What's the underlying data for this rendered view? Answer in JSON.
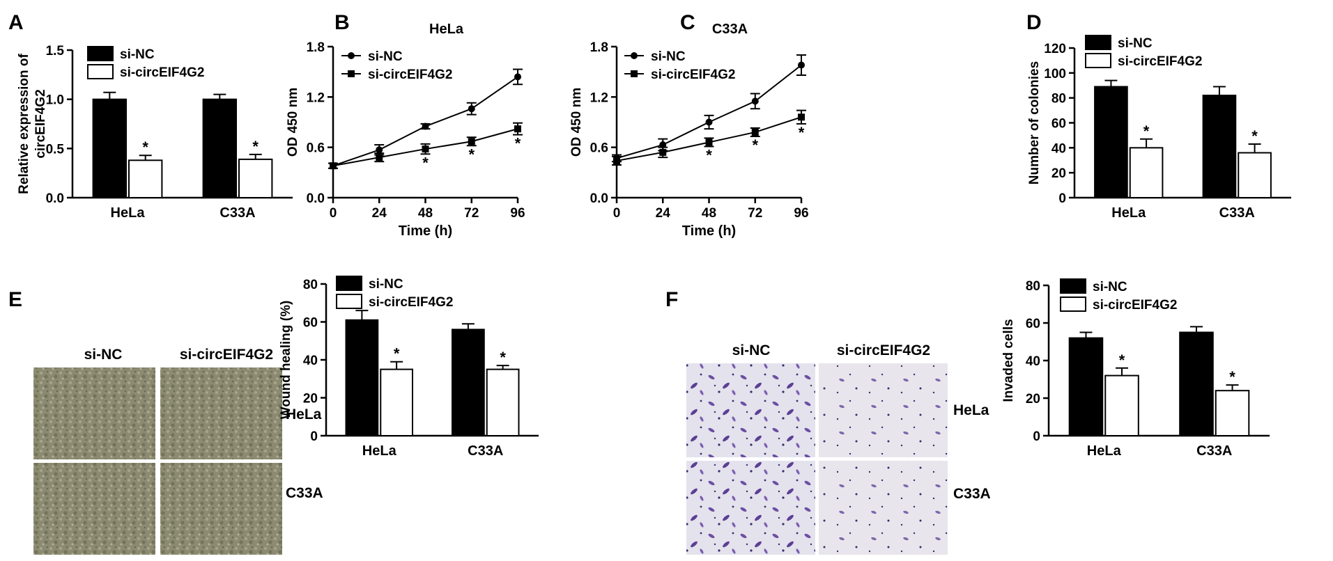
{
  "panels": {
    "A": "A",
    "B": "B",
    "C": "C",
    "D": "D",
    "E": "E",
    "F": "F"
  },
  "colors": {
    "si_nc": "#000000",
    "si_circ": "#ffffff",
    "axis": "#000000"
  },
  "legend": {
    "si_nc": "si-NC",
    "si_circ": "si-circEIF4G2"
  },
  "significance_marker": "*",
  "micrographs": {
    "E": {
      "col_labels": [
        "si-NC",
        "si-circEIF4G2"
      ],
      "row_labels": [
        "HeLa",
        "C33A"
      ],
      "stain": "phase-contrast wound healing"
    },
    "F": {
      "col_labels": [
        "si-NC",
        "si-circEIF4G2"
      ],
      "row_labels": [
        "HeLa",
        "C33A"
      ],
      "stain": "crystal violet invasion"
    }
  },
  "chart_data": [
    {
      "panel": "A",
      "type": "bar",
      "title": "",
      "categories": [
        "HeLa",
        "C33A"
      ],
      "ylabel": "Relative expression of circEIF4G2",
      "ylim": [
        0,
        1.5
      ],
      "yticks": [
        "0.0",
        "0.5",
        "1.0",
        "1.5"
      ],
      "ytick_values": [
        0,
        0.5,
        1.0,
        1.5
      ],
      "series": [
        {
          "name": "si-NC",
          "values": [
            1.0,
            1.0
          ],
          "errors": [
            0.07,
            0.05
          ]
        },
        {
          "name": "si-circEIF4G2",
          "values": [
            0.38,
            0.39
          ],
          "errors": [
            0.05,
            0.05
          ]
        }
      ],
      "sig": [
        [
          false,
          true
        ],
        [
          false,
          true
        ]
      ],
      "legend_position": "top-left"
    },
    {
      "panel": "B",
      "type": "line",
      "title": "HeLa",
      "x": [
        0,
        24,
        48,
        72,
        96
      ],
      "xlabel": "Time (h)",
      "ylabel": "OD 450 nm",
      "xlim": [
        0,
        96
      ],
      "ylim": [
        0,
        1.8
      ],
      "xticks": [
        "0",
        "24",
        "48",
        "72",
        "96"
      ],
      "xtick_values": [
        0,
        24,
        48,
        72,
        96
      ],
      "yticks": [
        "0.0",
        "0.6",
        "1.2",
        "1.8"
      ],
      "ytick_values": [
        0,
        0.6,
        1.2,
        1.8
      ],
      "series": [
        {
          "name": "si-NC",
          "values": [
            0.38,
            0.57,
            0.85,
            1.06,
            1.44
          ],
          "errors": [
            0.03,
            0.06,
            0.03,
            0.07,
            0.09
          ]
        },
        {
          "name": "si-circEIF4G2",
          "values": [
            0.38,
            0.48,
            0.58,
            0.67,
            0.82
          ],
          "errors": [
            0.03,
            0.05,
            0.06,
            0.05,
            0.07
          ]
        }
      ],
      "sig_points": [
        false,
        false,
        true,
        true,
        true
      ],
      "legend_position": "top-left"
    },
    {
      "panel": "C",
      "type": "line",
      "title": "C33A",
      "x": [
        0,
        24,
        48,
        72,
        96
      ],
      "xlabel": "Time (h)",
      "ylabel": "OD 450 nm",
      "xlim": [
        0,
        96
      ],
      "ylim": [
        0,
        1.8
      ],
      "xticks": [
        "0",
        "24",
        "48",
        "72",
        "96"
      ],
      "xtick_values": [
        0,
        24,
        48,
        72,
        96
      ],
      "yticks": [
        "0.0",
        "0.6",
        "1.2",
        "1.8"
      ],
      "ytick_values": [
        0,
        0.6,
        1.2,
        1.8
      ],
      "series": [
        {
          "name": "si-NC",
          "values": [
            0.47,
            0.63,
            0.9,
            1.15,
            1.58
          ],
          "errors": [
            0.04,
            0.07,
            0.08,
            0.09,
            0.12
          ]
        },
        {
          "name": "si-circEIF4G2",
          "values": [
            0.44,
            0.54,
            0.66,
            0.78,
            0.96
          ],
          "errors": [
            0.05,
            0.06,
            0.05,
            0.05,
            0.08
          ]
        }
      ],
      "sig_points": [
        false,
        false,
        true,
        true,
        true
      ],
      "legend_position": "top-left"
    },
    {
      "panel": "D",
      "type": "bar",
      "title": "",
      "categories": [
        "HeLa",
        "C33A"
      ],
      "ylabel": "Number of colonies",
      "ylim": [
        0,
        120
      ],
      "yticks": [
        "0",
        "20",
        "40",
        "60",
        "80",
        "100",
        "120"
      ],
      "ytick_values": [
        0,
        20,
        40,
        60,
        80,
        100,
        120
      ],
      "series": [
        {
          "name": "si-NC",
          "values": [
            89,
            82
          ],
          "errors": [
            5,
            7
          ]
        },
        {
          "name": "si-circEIF4G2",
          "values": [
            40,
            36
          ],
          "errors": [
            7,
            7
          ]
        }
      ],
      "sig": [
        [
          false,
          true
        ],
        [
          false,
          true
        ]
      ],
      "legend_position": "top-left"
    },
    {
      "panel": "E",
      "type": "bar",
      "title": "",
      "categories": [
        "HeLa",
        "C33A"
      ],
      "ylabel": "Wound healing (%)",
      "ylim": [
        0,
        80
      ],
      "yticks": [
        "0",
        "20",
        "40",
        "60",
        "80"
      ],
      "ytick_values": [
        0,
        20,
        40,
        60,
        80
      ],
      "series": [
        {
          "name": "si-NC",
          "values": [
            61,
            56
          ],
          "errors": [
            5,
            3
          ]
        },
        {
          "name": "si-circEIF4G2",
          "values": [
            35,
            35
          ],
          "errors": [
            4,
            2
          ]
        }
      ],
      "sig": [
        [
          false,
          true
        ],
        [
          false,
          true
        ]
      ],
      "legend_position": "top-left"
    },
    {
      "panel": "F",
      "type": "bar",
      "title": "",
      "categories": [
        "HeLa",
        "C33A"
      ],
      "ylabel": "Invaded cells",
      "ylim": [
        0,
        80
      ],
      "yticks": [
        "0",
        "20",
        "40",
        "60",
        "80"
      ],
      "ytick_values": [
        0,
        20,
        40,
        60,
        80
      ],
      "series": [
        {
          "name": "si-NC",
          "values": [
            52,
            55
          ],
          "errors": [
            3,
            3
          ]
        },
        {
          "name": "si-circEIF4G2",
          "values": [
            32,
            24
          ],
          "errors": [
            4,
            3
          ]
        }
      ],
      "sig": [
        [
          false,
          true
        ],
        [
          false,
          true
        ]
      ],
      "legend_position": "top-left"
    }
  ]
}
